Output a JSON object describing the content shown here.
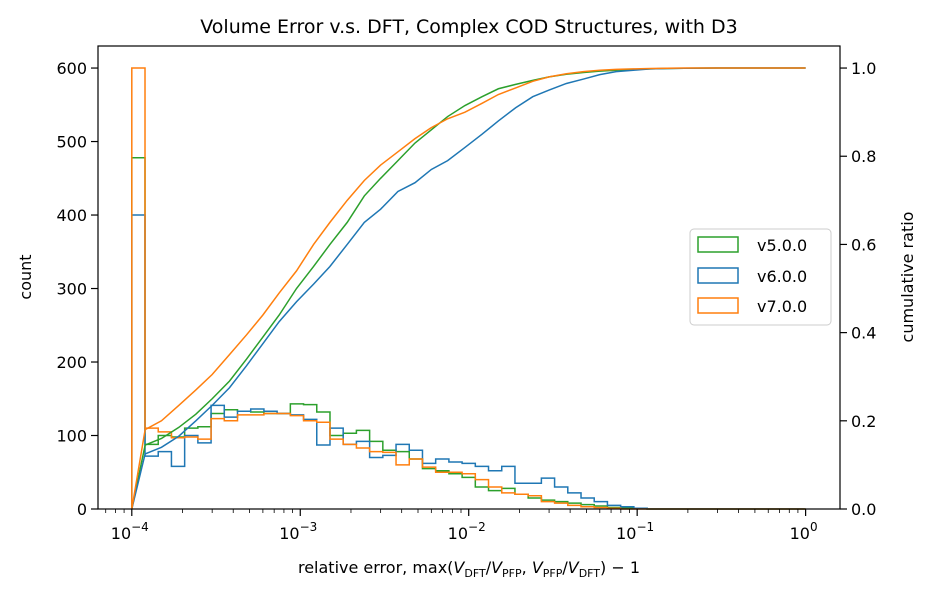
{
  "chart_data": {
    "type": "histogram+cumulative",
    "title": "Volume Error v.s. DFT, Complex COD Structures, with D3",
    "xlabel": {
      "prefix": "relative error, max(",
      "v1": "V",
      "s1": "DFT",
      "div1": "/",
      "v2": "V",
      "s2": "PFP",
      "comma": ", ",
      "v3": "V",
      "s3": "PFP",
      "div2": "/",
      "v4": "V",
      "s4": "DFT",
      "suffix": ") − 1"
    },
    "ylabel_left": "count",
    "ylabel_right": "cumulative ratio",
    "x_scale": "log",
    "x_range": [
      6.3e-05,
      1.6
    ],
    "y_left_range": [
      0,
      630
    ],
    "y_right_range": [
      0,
      1.05
    ],
    "x_ticks": [
      {
        "value": 0.0001,
        "base": "10",
        "exp": "−4"
      },
      {
        "value": 0.001,
        "base": "10",
        "exp": "−3"
      },
      {
        "value": 0.01,
        "base": "10",
        "exp": "−2"
      },
      {
        "value": 0.1,
        "base": "10",
        "exp": "−1"
      },
      {
        "value": 1,
        "base": "10",
        "exp": "0"
      }
    ],
    "y_left_ticks": [
      0,
      100,
      200,
      300,
      400,
      500,
      600
    ],
    "y_right_ticks": [
      "0.0",
      "0.2",
      "0.4",
      "0.6",
      "0.8",
      "1.0"
    ],
    "y_right_tick_values": [
      0,
      0.2,
      0.4,
      0.6,
      0.8,
      1.0
    ],
    "legend_position": "center-right",
    "grid": false,
    "bin_edges_log10": [
      -4,
      -3.9216,
      -3.8431,
      -3.7647,
      -3.6863,
      -3.6078,
      -3.5294,
      -3.451,
      -3.3725,
      -3.2941,
      -3.2157,
      -3.1373,
      -3.0588,
      -2.9804,
      -2.902,
      -2.8235,
      -2.7451,
      -2.6667,
      -2.5882,
      -2.5098,
      -2.4314,
      -2.3529,
      -2.2745,
      -2.1961,
      -2.1176,
      -2.0392,
      -1.9608,
      -1.8824,
      -1.8039,
      -1.7255,
      -1.6471,
      -1.5686,
      -1.4902,
      -1.4118,
      -1.3333,
      -1.2549,
      -1.1765,
      -1.098,
      -1.0196,
      -0.9412,
      -0.8627,
      -0.7843,
      -0.7059,
      -0.6275,
      -0.549,
      -0.4706,
      -0.3922,
      -0.3137,
      -0.2353,
      -0.1569,
      -0.0784,
      0
    ],
    "series": [
      {
        "name": "v5.0.0",
        "color": "#2ca02c",
        "hist": [
          478,
          88,
          100,
          98,
          110,
          112,
          130,
          135,
          133,
          132,
          130,
          130,
          143,
          142,
          132,
          100,
          103,
          107,
          92,
          80,
          78,
          68,
          55,
          52,
          48,
          43,
          30,
          25,
          28,
          20,
          15,
          12,
          10,
          8,
          6,
          4,
          2,
          1,
          1,
          0,
          0,
          0,
          0,
          0,
          0,
          0,
          0,
          0,
          0,
          0,
          0
        ],
        "cum_x": [
          0.0001,
          0.00012,
          0.00015,
          0.00019,
          0.00024,
          0.0003,
          0.00038,
          0.00048,
          0.0006,
          0.00075,
          0.00095,
          0.0012,
          0.0015,
          0.0019,
          0.0024,
          0.003,
          0.0038,
          0.0048,
          0.006,
          0.0075,
          0.0095,
          0.012,
          0.015,
          0.019,
          0.024,
          0.03,
          0.038,
          0.048,
          0.06,
          0.075,
          0.095,
          0.12,
          0.15,
          0.19,
          0.3,
          0.6,
          1.0
        ],
        "cum_y": [
          0,
          0.145,
          0.16,
          0.185,
          0.215,
          0.25,
          0.29,
          0.34,
          0.39,
          0.44,
          0.5,
          0.55,
          0.6,
          0.65,
          0.71,
          0.75,
          0.79,
          0.83,
          0.86,
          0.89,
          0.915,
          0.935,
          0.953,
          0.963,
          0.972,
          0.98,
          0.986,
          0.99,
          0.993,
          0.995,
          0.997,
          0.998,
          0.999,
          0.9995,
          1.0,
          1.0,
          1.0
        ]
      },
      {
        "name": "v6.0.0",
        "color": "#1f77b4",
        "hist": [
          400,
          72,
          78,
          58,
          100,
          90,
          141,
          125,
          133,
          136,
          133,
          130,
          128,
          122,
          87,
          110,
          88,
          92,
          70,
          73,
          88,
          80,
          62,
          68,
          64,
          62,
          58,
          52,
          58,
          35,
          35,
          42,
          30,
          22,
          15,
          10,
          5,
          3,
          1,
          0,
          0,
          0,
          0,
          0,
          0,
          0,
          0,
          0,
          0,
          0,
          0
        ],
        "cum_x": [
          0.0001,
          0.00012,
          0.00015,
          0.00019,
          0.00024,
          0.0003,
          0.00038,
          0.00048,
          0.0006,
          0.00075,
          0.00095,
          0.0012,
          0.0015,
          0.0019,
          0.0024,
          0.003,
          0.0038,
          0.0048,
          0.006,
          0.0075,
          0.0095,
          0.012,
          0.015,
          0.019,
          0.024,
          0.03,
          0.038,
          0.048,
          0.06,
          0.075,
          0.095,
          0.12,
          0.15,
          0.19,
          0.3,
          0.6,
          1.0
        ],
        "cum_y": [
          0,
          0.125,
          0.14,
          0.165,
          0.2,
          0.235,
          0.275,
          0.325,
          0.375,
          0.425,
          0.47,
          0.51,
          0.55,
          0.6,
          0.65,
          0.68,
          0.72,
          0.74,
          0.77,
          0.79,
          0.82,
          0.85,
          0.88,
          0.91,
          0.935,
          0.95,
          0.965,
          0.975,
          0.985,
          0.992,
          0.995,
          0.998,
          0.999,
          0.9995,
          1.0,
          1.0,
          1.0
        ]
      },
      {
        "name": "v7.0.0",
        "color": "#ff7f0e",
        "hist": [
          600,
          110,
          105,
          97,
          98,
          95,
          123,
          120,
          128,
          128,
          130,
          130,
          127,
          120,
          118,
          95,
          88,
          83,
          78,
          77,
          60,
          68,
          57,
          50,
          50,
          48,
          40,
          30,
          22,
          20,
          18,
          10,
          8,
          5,
          3,
          2,
          1,
          0,
          0,
          0,
          0,
          0,
          0,
          0,
          0,
          0,
          0,
          0,
          0,
          0,
          0
        ],
        "cum_x": [
          0.0001,
          0.00012,
          0.00015,
          0.00019,
          0.00024,
          0.0003,
          0.00038,
          0.00048,
          0.0006,
          0.00075,
          0.00095,
          0.0012,
          0.0015,
          0.0019,
          0.0024,
          0.003,
          0.0038,
          0.0048,
          0.006,
          0.0075,
          0.0095,
          0.012,
          0.015,
          0.019,
          0.024,
          0.03,
          0.038,
          0.048,
          0.06,
          0.075,
          0.095,
          0.12,
          0.15,
          0.19,
          0.3,
          0.6,
          1.0
        ],
        "cum_y": [
          0,
          0.18,
          0.2,
          0.235,
          0.27,
          0.305,
          0.35,
          0.395,
          0.44,
          0.49,
          0.54,
          0.6,
          0.65,
          0.7,
          0.745,
          0.78,
          0.81,
          0.84,
          0.865,
          0.885,
          0.9,
          0.92,
          0.94,
          0.955,
          0.97,
          0.98,
          0.987,
          0.992,
          0.995,
          0.997,
          0.998,
          0.999,
          0.9995,
          1.0,
          1.0,
          1.0,
          1.0
        ]
      }
    ]
  }
}
